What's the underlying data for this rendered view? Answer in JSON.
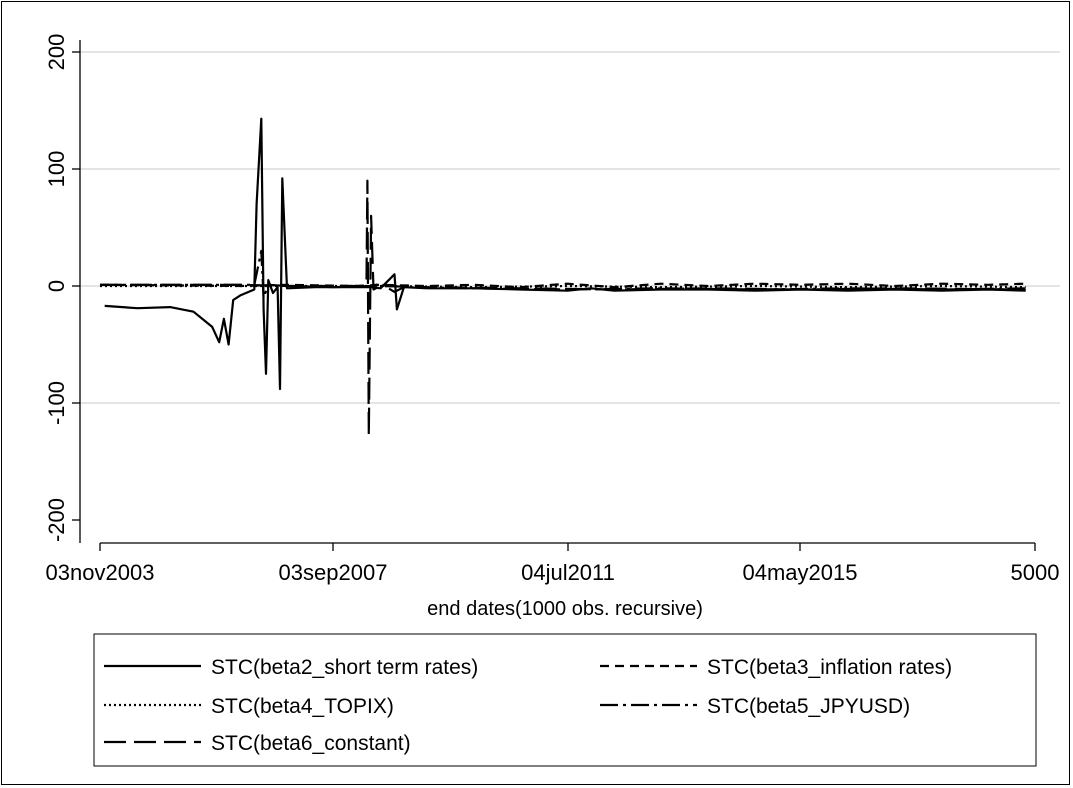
{
  "chart_data": {
    "type": "line",
    "title": "",
    "xlabel": "end dates(1000 obs. recursive)",
    "ylabel": "",
    "x_ticks": [
      "03nov2003",
      "03sep2007",
      "04jul2011",
      "04may2015",
      "5000"
    ],
    "y_ticks": [
      "-200",
      "-100",
      "0",
      "100",
      "200"
    ],
    "ylim": [
      -220,
      215
    ],
    "grid": true,
    "legend_position": "bottom",
    "series": [
      {
        "name": "STC(beta2_short term rates)",
        "style": "solid",
        "points": [
          [
            0.1,
            -17
          ],
          [
            0.8,
            -19
          ],
          [
            1.5,
            -18
          ],
          [
            2.0,
            -22
          ],
          [
            2.4,
            -35
          ],
          [
            2.55,
            -48
          ],
          [
            2.65,
            -28
          ],
          [
            2.75,
            -50
          ],
          [
            2.85,
            -12
          ],
          [
            3.0,
            -8
          ],
          [
            3.3,
            -3
          ],
          [
            3.35,
            70
          ],
          [
            3.45,
            143
          ],
          [
            3.5,
            -20
          ],
          [
            3.55,
            -75
          ],
          [
            3.6,
            5
          ],
          [
            3.7,
            -6
          ],
          [
            3.8,
            -1
          ],
          [
            3.85,
            -88
          ],
          [
            3.9,
            92
          ],
          [
            4.0,
            -2
          ],
          [
            4.6,
            -1
          ],
          [
            5.0,
            -1
          ],
          [
            5.5,
            -1
          ],
          [
            5.8,
            -1
          ],
          [
            6.0,
            -2
          ],
          [
            6.3,
            10
          ],
          [
            6.35,
            -20
          ],
          [
            6.5,
            -1
          ],
          [
            7.0,
            -2
          ],
          [
            8.0,
            -2
          ],
          [
            9.0,
            -3
          ],
          [
            10.0,
            -4
          ],
          [
            10.5,
            -2
          ],
          [
            11.0,
            -4
          ],
          [
            12.0,
            -3
          ],
          [
            13.0,
            -3
          ],
          [
            14.0,
            -4
          ],
          [
            15.0,
            -3
          ],
          [
            16.0,
            -4
          ],
          [
            17.0,
            -3
          ],
          [
            18.0,
            -4
          ],
          [
            19.0,
            -3
          ],
          [
            19.8,
            -4
          ]
        ]
      },
      {
        "name": "STC(beta3_inflation rates)",
        "style": "dashed",
        "points": [
          [
            0.0,
            1
          ],
          [
            3.0,
            0
          ],
          [
            4.0,
            1
          ],
          [
            5.5,
            0
          ],
          [
            6.0,
            1
          ],
          [
            7.0,
            0
          ],
          [
            8.0,
            1
          ],
          [
            9.0,
            -1
          ],
          [
            10.0,
            2
          ],
          [
            11.0,
            -1
          ],
          [
            12.0,
            2
          ],
          [
            13.0,
            0
          ],
          [
            14.0,
            2
          ],
          [
            15.0,
            1
          ],
          [
            16.0,
            2
          ],
          [
            17.0,
            0
          ],
          [
            18.0,
            2
          ],
          [
            19.0,
            1
          ],
          [
            19.8,
            2
          ]
        ]
      },
      {
        "name": "STC(beta4_TOPIX)",
        "style": "dotted",
        "points": [
          [
            0.0,
            0
          ],
          [
            3.0,
            0
          ],
          [
            4.0,
            0
          ],
          [
            6.0,
            0
          ],
          [
            8.0,
            -1
          ],
          [
            10.0,
            0
          ],
          [
            12.0,
            -1
          ],
          [
            14.0,
            0
          ],
          [
            16.0,
            -1
          ],
          [
            18.0,
            0
          ],
          [
            19.8,
            -1
          ]
        ]
      },
      {
        "name": "STC(beta5_JPYUSD)",
        "style": "dashdot",
        "points": [
          [
            0.0,
            1
          ],
          [
            3.3,
            1
          ],
          [
            3.45,
            30
          ],
          [
            3.5,
            -10
          ],
          [
            3.6,
            1
          ],
          [
            4.0,
            0
          ],
          [
            5.0,
            -1
          ],
          [
            5.8,
            0
          ],
          [
            6.0,
            2
          ],
          [
            6.3,
            -5
          ],
          [
            6.5,
            -1
          ],
          [
            8.0,
            -2
          ],
          [
            10.0,
            -3
          ],
          [
            12.0,
            -2
          ],
          [
            14.0,
            -3
          ],
          [
            16.0,
            -2
          ],
          [
            18.0,
            -3
          ],
          [
            19.8,
            -2
          ]
        ]
      },
      {
        "name": "STC(beta6_constant)",
        "style": "longdash",
        "points": [
          [
            0.0,
            1
          ],
          [
            3.0,
            1
          ],
          [
            4.0,
            0
          ],
          [
            5.6,
            0
          ],
          [
            5.7,
            5
          ],
          [
            5.72,
            90
          ],
          [
            5.75,
            -128
          ],
          [
            5.8,
            60
          ],
          [
            5.85,
            -3
          ],
          [
            6.0,
            0
          ],
          [
            7.0,
            -1
          ],
          [
            9.0,
            -2
          ],
          [
            11.0,
            -3
          ],
          [
            13.0,
            -2
          ],
          [
            15.0,
            -3
          ],
          [
            17.0,
            -2
          ],
          [
            19.8,
            -3
          ]
        ]
      }
    ]
  }
}
